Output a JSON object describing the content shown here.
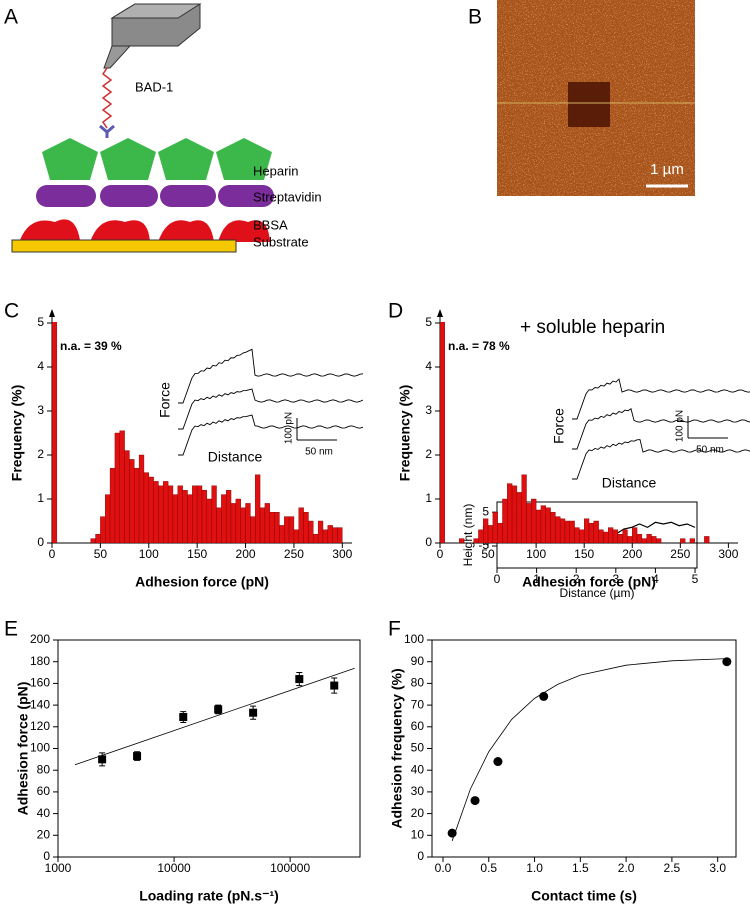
{
  "panel_labels": [
    "A",
    "B",
    "C",
    "D",
    "E",
    "F"
  ],
  "diagram": {
    "labels": {
      "ligand": "BAD-1",
      "layer1": "Heparin",
      "layer2": "Streptavidin",
      "layer3": "BBSA",
      "layer4": "Substrate"
    }
  },
  "afm_image": {
    "scale_bar": "1 µm"
  },
  "chart_data": [
    {
      "type": "line",
      "xlabel": "Distance (µm)",
      "ylabel": "Height (nm)",
      "x": [
        0,
        0.2,
        0.4,
        0.6,
        0.8,
        1.0,
        1.2,
        1.4,
        1.6,
        1.8,
        2.0,
        2.2,
        2.4,
        2.6,
        2.8,
        3.0,
        3.2,
        3.4,
        3.6,
        3.8,
        4.0,
        4.2,
        4.4,
        4.6,
        4.8,
        5.0
      ],
      "values": [
        0.5,
        1,
        3.5,
        1,
        1,
        0.5,
        1.5,
        2.5,
        1,
        0.5,
        -1.5,
        -2,
        -2.5,
        -2,
        -2,
        -1.5,
        0,
        0.5,
        1.5,
        0.5,
        2,
        1.5,
        2,
        1,
        1.5,
        0.5
      ],
      "color": "#000000",
      "xlim": [
        0,
        5.05
      ],
      "ylim": [
        -11.5,
        8
      ],
      "xticks": [
        0,
        1,
        2,
        3,
        4,
        5
      ],
      "yticks": [
        5,
        0,
        -5
      ]
    },
    {
      "type": "histogram",
      "xlabel": "Adhesion force (pN)",
      "ylabel": "Frequency (%)",
      "annotation": "n.a. = 39 %",
      "na_value": 39,
      "na_bins": [
        0,
        5
      ],
      "inset": {
        "y_label": "Force",
        "x_label": "Distance",
        "scale_y": "100 pN",
        "scale_x": "50 nm"
      },
      "color": "#e01010",
      "xlim": [
        0,
        310
      ],
      "ylim": [
        0,
        5
      ],
      "xticks": [
        0,
        50,
        100,
        150,
        200,
        250,
        300
      ],
      "yticks": [
        0,
        1,
        2,
        3,
        4,
        5
      ],
      "bins": [
        40,
        45,
        50,
        55,
        60,
        65,
        70,
        75,
        80,
        85,
        90,
        95,
        100,
        105,
        110,
        115,
        120,
        125,
        130,
        135,
        140,
        145,
        150,
        155,
        160,
        165,
        170,
        175,
        180,
        185,
        190,
        195,
        200,
        205,
        210,
        215,
        220,
        225,
        230,
        235,
        240,
        245,
        250,
        255,
        260,
        265,
        270,
        275,
        280,
        285,
        290,
        295,
        300
      ],
      "values": [
        0.1,
        0.2,
        0.6,
        1.1,
        1.7,
        2.5,
        2.55,
        2.1,
        1.9,
        1.7,
        2.0,
        1.6,
        1.5,
        1.4,
        1.3,
        1.4,
        1.3,
        1.1,
        1.3,
        1.2,
        1.1,
        1.3,
        1.3,
        1.2,
        1.0,
        1.3,
        0.8,
        1.1,
        1.2,
        0.9,
        1.0,
        0.8,
        0.9,
        0.6,
        1.55,
        0.8,
        0.9,
        0.7,
        0.7,
        0.4,
        0.6,
        0.6,
        0.3,
        0.8,
        0.7,
        0.5,
        0.2,
        0.5,
        0.3,
        0.4,
        0.35,
        0.35
      ]
    },
    {
      "type": "histogram",
      "subtitle": "+ soluble heparin",
      "xlabel": "Adhesion force (pN)",
      "ylabel": "Frequency (%)",
      "annotation": "n.a. = 78 %",
      "na_value": 78,
      "na_bins": [
        0,
        5
      ],
      "inset": {
        "y_label": "Force",
        "x_label": "Distance",
        "scale_y": "100 pN",
        "scale_x": "50 nm"
      },
      "color": "#e01010",
      "xlim": [
        0,
        310
      ],
      "ylim": [
        0,
        5
      ],
      "xticks": [
        0,
        50,
        100,
        150,
        200,
        250,
        300
      ],
      "yticks": [
        0,
        1,
        2,
        3,
        4,
        5
      ],
      "bins": [
        20,
        25,
        30,
        35,
        40,
        45,
        50,
        55,
        60,
        65,
        70,
        75,
        80,
        85,
        90,
        95,
        100,
        105,
        110,
        115,
        120,
        125,
        130,
        135,
        140,
        145,
        150,
        155,
        160,
        165,
        170,
        175,
        180,
        185,
        190,
        195,
        200,
        205,
        210,
        215,
        220,
        225,
        230,
        235,
        240,
        245,
        250,
        255,
        260,
        265,
        270,
        275,
        280
      ],
      "values": [
        0.1,
        0,
        0,
        0.1,
        0.3,
        0.55,
        0.4,
        0.7,
        0.45,
        1.0,
        1.35,
        1.3,
        1.15,
        1.55,
        0.9,
        1.0,
        0.75,
        0.85,
        0.8,
        0.7,
        0.6,
        0.55,
        0.5,
        0.5,
        0.35,
        0.3,
        0.55,
        0.45,
        0.5,
        0.3,
        0.25,
        0.35,
        0.3,
        0.2,
        0.3,
        0.15,
        0.35,
        0.2,
        0.1,
        0.2,
        0.15,
        0.1,
        0,
        0,
        0,
        0,
        0.1,
        0,
        0.1,
        0,
        0,
        0.15
      ]
    },
    {
      "type": "scatter",
      "xlabel": "Loading rate (pN.s⁻¹)",
      "ylabel": "Adhesion force (pN)",
      "log_x": true,
      "marker": "square",
      "color": "#000000",
      "x": [
        2400,
        4800,
        12000,
        24000,
        48000,
        120000,
        240000
      ],
      "values": [
        90,
        93,
        129,
        136,
        133,
        164,
        158
      ],
      "errors": [
        6,
        4,
        5,
        4,
        6,
        6,
        7
      ],
      "fit": {
        "x": [
          1400,
          360000
        ],
        "values": [
          85,
          174
        ]
      },
      "xlim": [
        1000,
        400000
      ],
      "ylim": [
        0,
        200
      ],
      "xticks": [
        1000,
        10000,
        100000
      ],
      "yticks": [
        0,
        20,
        40,
        60,
        80,
        100,
        120,
        140,
        160,
        180,
        200
      ]
    },
    {
      "type": "scatter",
      "xlabel": "Contact time (s)",
      "ylabel": "Adhesion frequency (%)",
      "marker": "circle",
      "color": "#000000",
      "x": [
        0.1,
        0.35,
        0.6,
        1.1,
        3.1
      ],
      "values": [
        11,
        26,
        44,
        74,
        90
      ],
      "fit": {
        "x": [
          0.1,
          0.3,
          0.5,
          0.75,
          1,
          1.25,
          1.5,
          2,
          2.5,
          3.1
        ],
        "values": [
          7.4,
          31.4,
          48.5,
          63.4,
          73.1,
          79.5,
          83.8,
          88.4,
          90.4,
          91.4
        ]
      },
      "xlim": [
        -0.12,
        3.2
      ],
      "ylim": [
        0,
        100
      ],
      "xticks": [
        {
          "value": 0,
          "label": "0.0"
        },
        0.5,
        {
          "value": 1,
          "label": "1.0"
        },
        1.5,
        {
          "value": 2,
          "label": "2.0"
        },
        2.5,
        {
          "value": 3,
          "label": "3.0"
        }
      ],
      "yticks": [
        0,
        10,
        20,
        30,
        40,
        50,
        60,
        70,
        80,
        90,
        100
      ]
    }
  ]
}
